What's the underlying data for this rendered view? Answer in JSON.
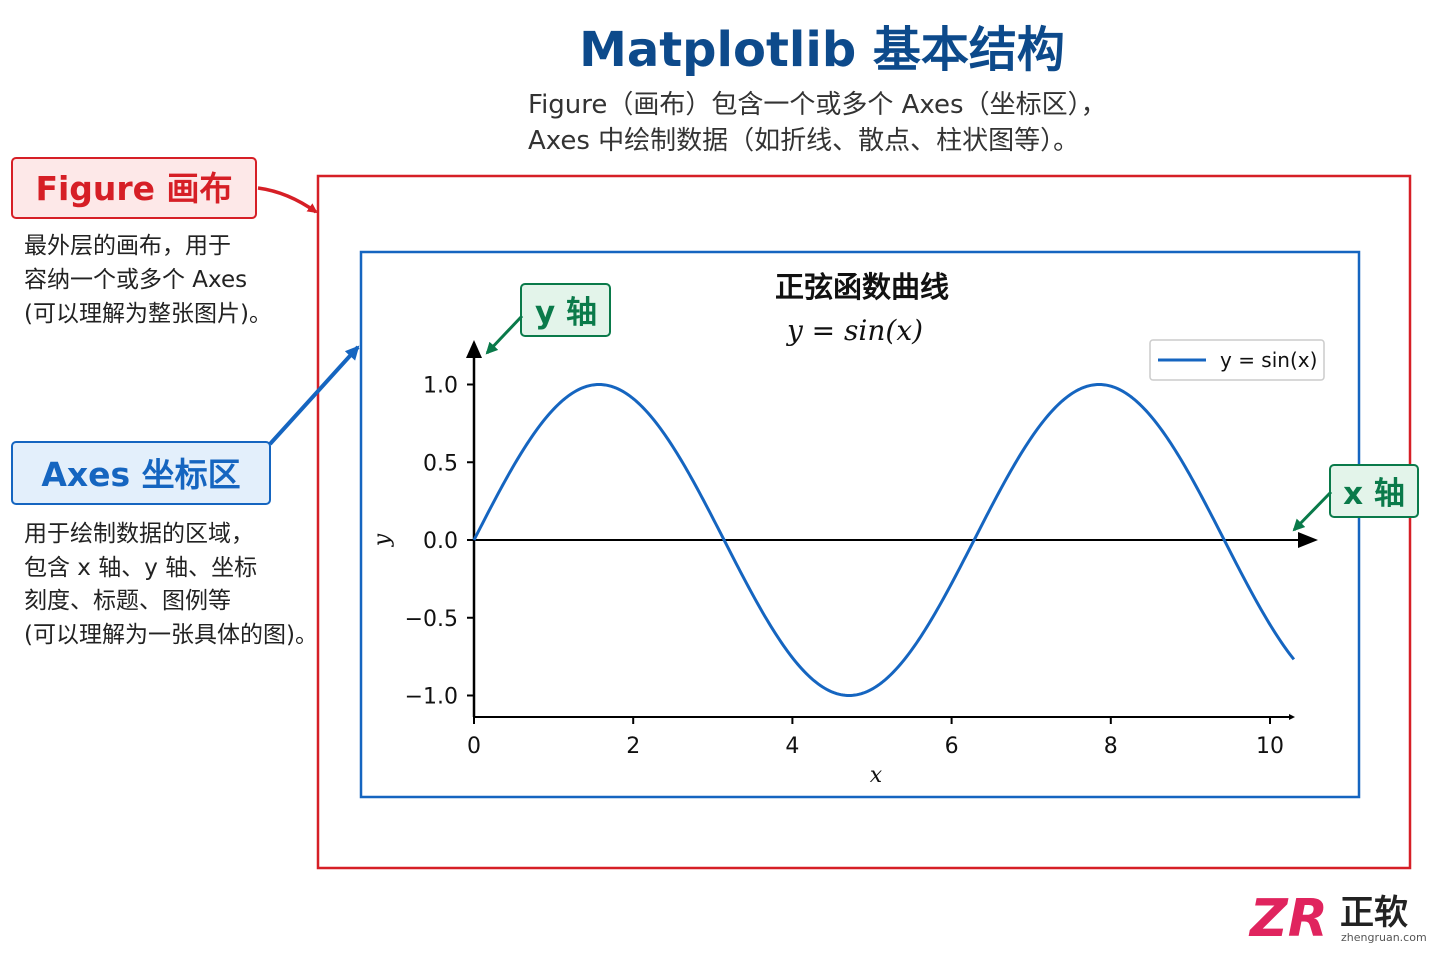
{
  "header": {
    "title": "Matplotlib 基本结构",
    "subtitle_line1": "Figure（画布）包含一个或多个 Axes（坐标区），",
    "subtitle_line2": "Axes 中绘制数据（如折线、散点、柱状图等）。"
  },
  "figure_callout": {
    "label": "Figure 画布",
    "desc": [
      "最外层的画布，用于",
      "容纳一个或多个 Axes",
      "(可以理解为整张图片)。"
    ]
  },
  "axes_callout": {
    "label": "Axes 坐标区",
    "desc": [
      "用于绘制数据的区域，",
      "包含 x 轴、y 轴、坐标",
      "刻度、标题、图例等",
      "(可以理解为一张具体的图)。"
    ]
  },
  "yaxis_callout": {
    "label": "y 轴"
  },
  "xaxis_callout": {
    "label": "x 轴"
  },
  "colors": {
    "title": "#0d4a8b",
    "figure_red": "#d61f26",
    "axes_blue": "#1565c0",
    "axis_green": "#0a7a4a",
    "curve": "#1565c0",
    "logo_pink": "#e0245e"
  },
  "chart_data": {
    "type": "line",
    "title": "正弦函数曲线",
    "subtitle": "y = sin(x)",
    "xlabel": "x",
    "ylabel": "y",
    "xlim": [
      0,
      10.3
    ],
    "ylim": [
      -1.15,
      1.25
    ],
    "xticks": [
      0,
      2,
      4,
      6,
      8,
      10
    ],
    "xtick_labels": [
      "0",
      "2",
      "4",
      "6",
      "8",
      "10"
    ],
    "yticks": [
      1.0,
      0.5,
      0.0,
      -0.5,
      -1.0
    ],
    "ytick_labels": [
      "1.0",
      "0.5",
      "0.0",
      "−0.5",
      "−1.0"
    ],
    "series": [
      {
        "name": "y = sin(x)",
        "function": "sin",
        "x_range": [
          0,
          10.3
        ]
      }
    ],
    "legend": {
      "entries": [
        "y = sin(x)"
      ],
      "placement": "top-right"
    },
    "grid": false
  },
  "logo": {
    "mark": "ZR",
    "name": "正软",
    "url": "zhengruan.com"
  }
}
